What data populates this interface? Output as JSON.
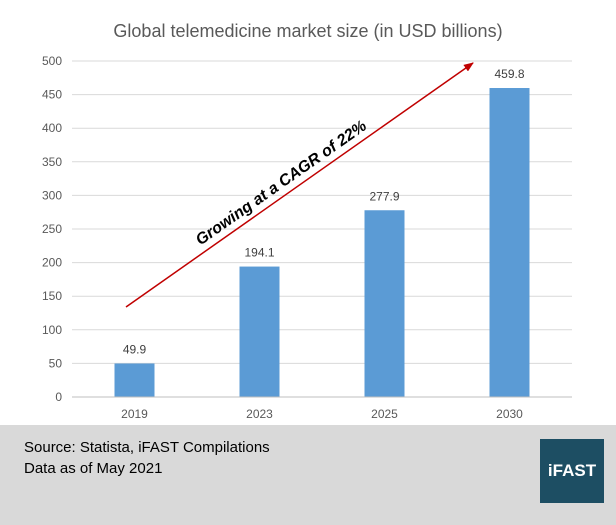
{
  "chart_data": {
    "type": "bar",
    "title": "Global telemedicine market size (in USD billions)",
    "categories": [
      "2019",
      "2023",
      "2025",
      "2030"
    ],
    "values": [
      49.9,
      194.1,
      277.9,
      459.8
    ],
    "value_labels": [
      "49.9",
      "194.1",
      "277.9",
      "459.8"
    ],
    "ylim": [
      0,
      500
    ],
    "yticks": [
      0,
      50,
      100,
      150,
      200,
      250,
      300,
      350,
      400,
      450,
      500
    ],
    "grid": true,
    "legend": "none",
    "bar_color": "#5b9bd5",
    "annotation": {
      "text": "Growing at a CAGR of 22%",
      "color": "#c00000"
    }
  },
  "footer": {
    "source": "Source: Statista, iFAST Compilations",
    "as_of": "Data as of May 2021",
    "logo_text": "iFAST",
    "logo_color": "#1d4e63",
    "background": "#d9d9d9"
  }
}
